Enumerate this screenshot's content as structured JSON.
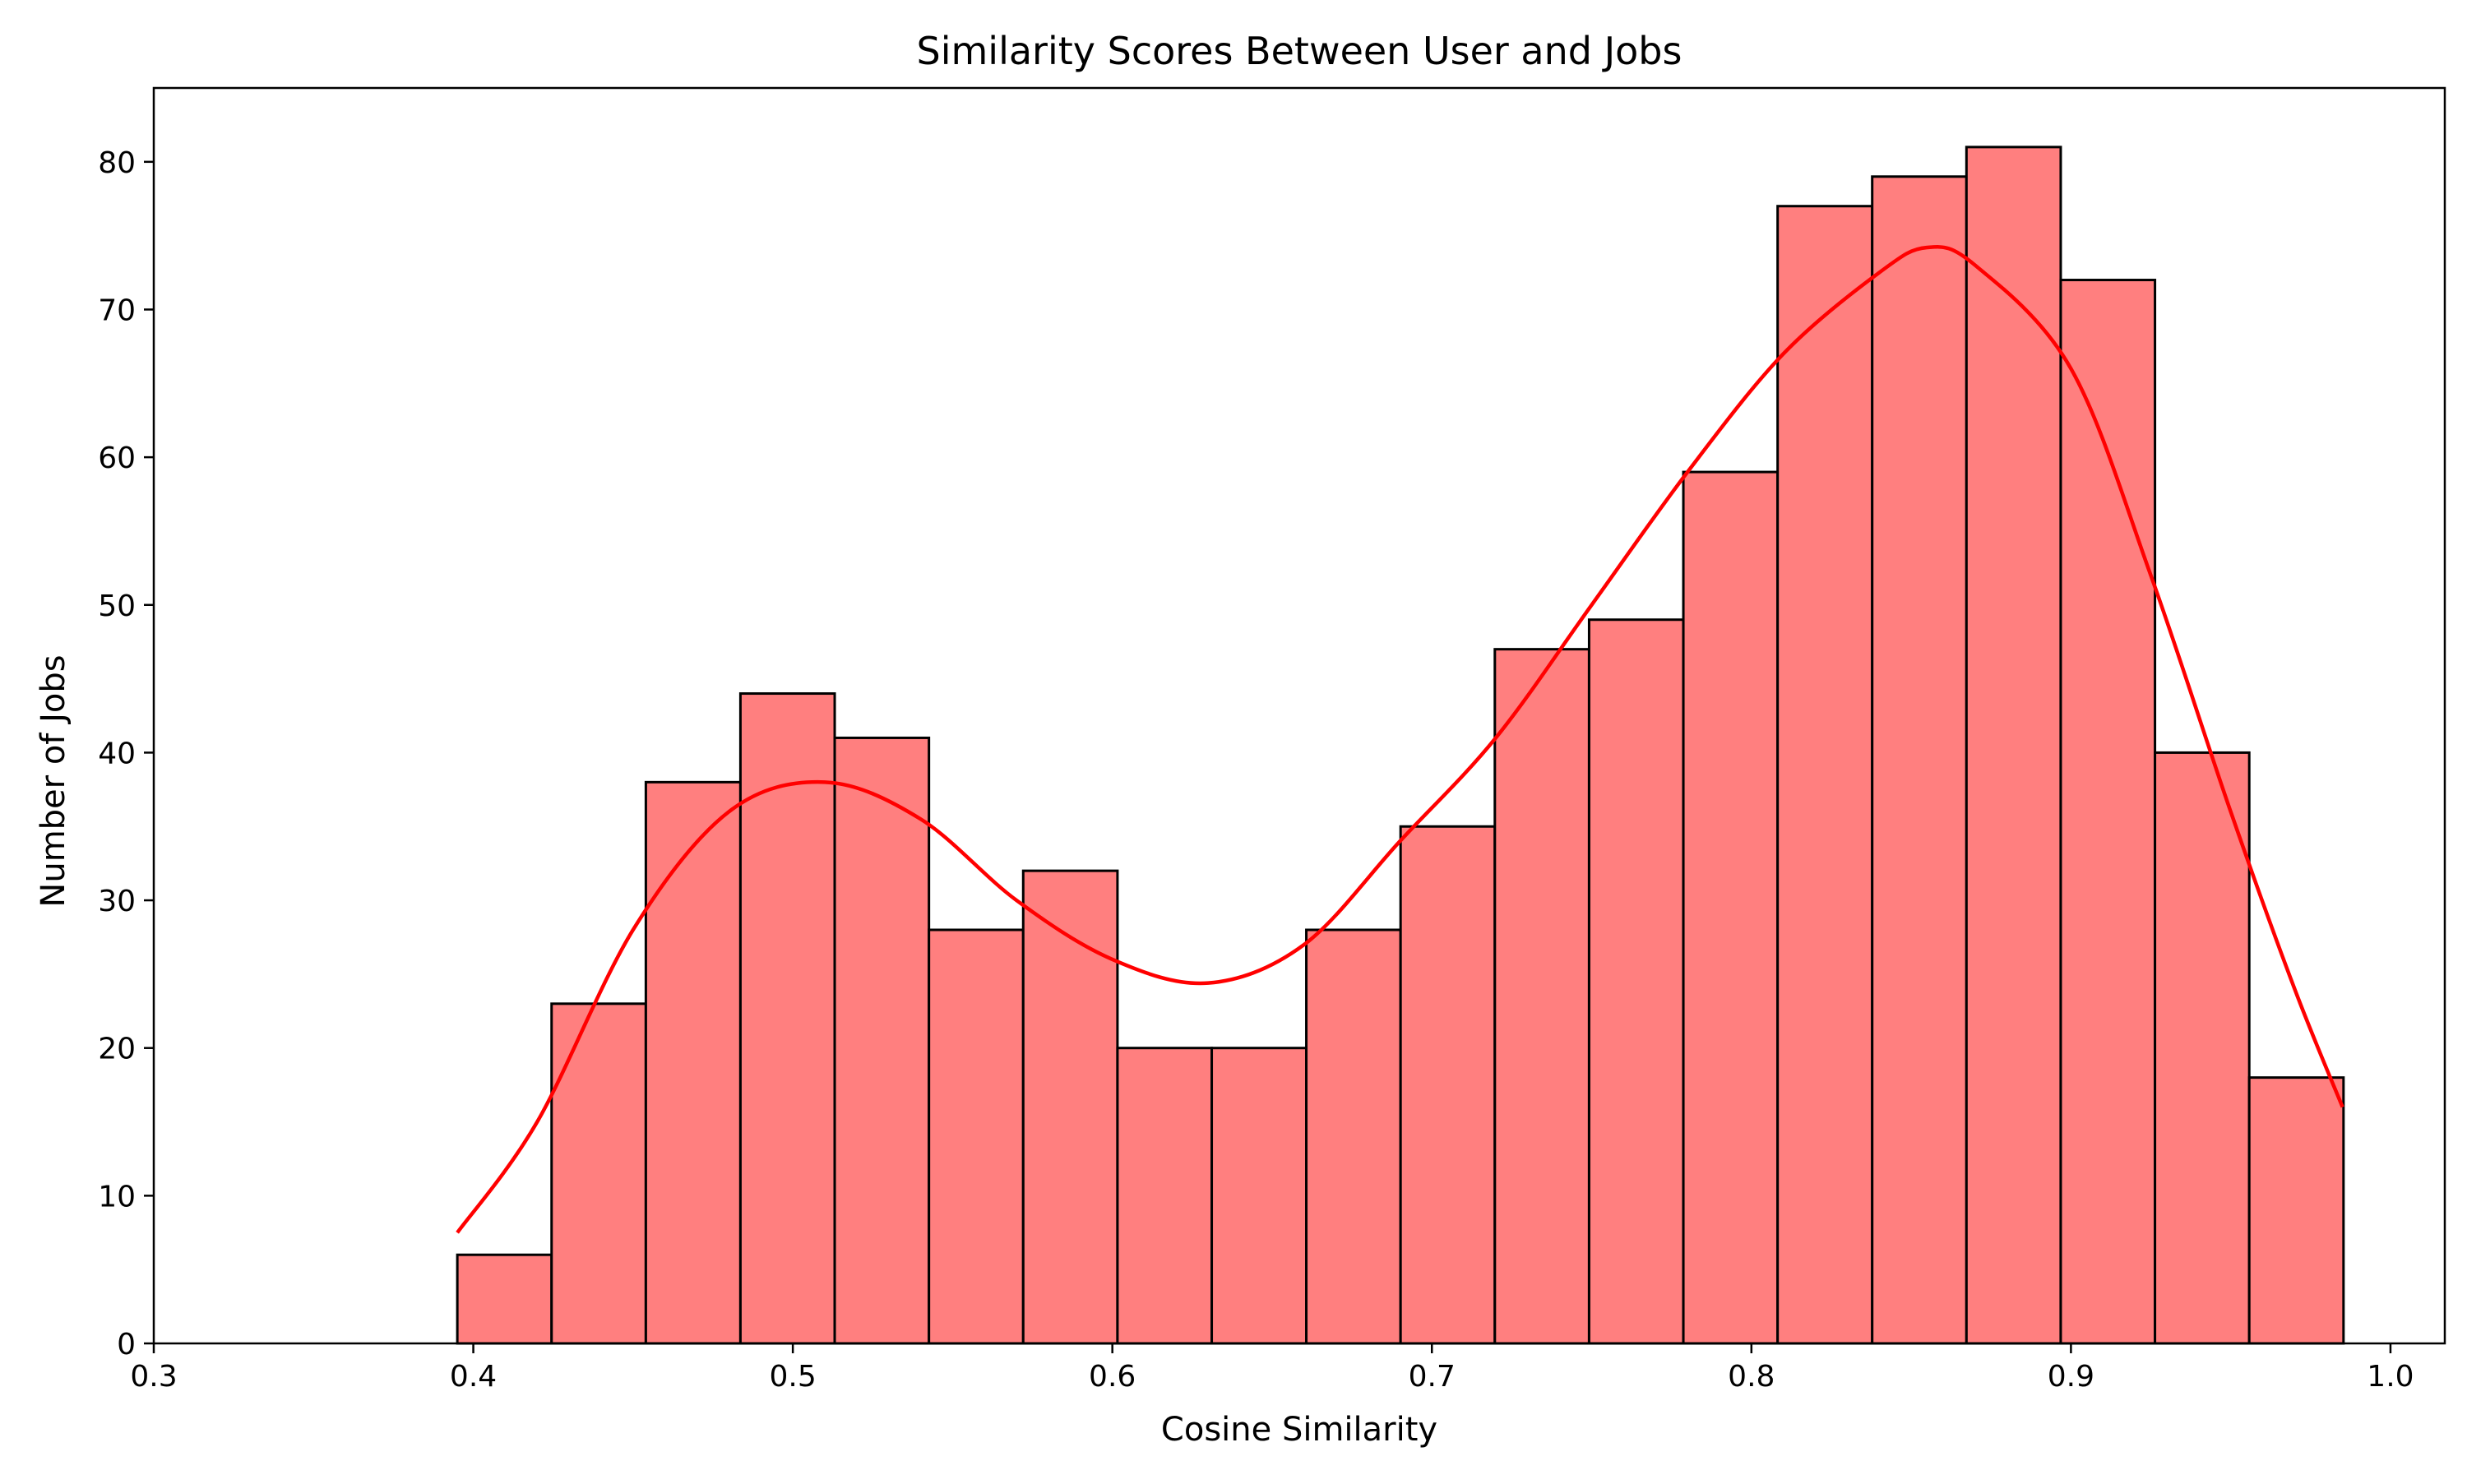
{
  "chart_data": {
    "type": "bar",
    "title": "Similarity Scores Between User and Jobs",
    "xlabel": "Cosine Similarity",
    "ylabel": "Number of Jobs",
    "xlim": [
      0.3,
      1.017
    ],
    "ylim": [
      0,
      85
    ],
    "x_ticks": [
      "0.3",
      "0.4",
      "0.5",
      "0.6",
      "0.7",
      "0.8",
      "0.9",
      "1.0"
    ],
    "y_ticks": [
      "0",
      "10",
      "20",
      "30",
      "40",
      "50",
      "60",
      "70",
      "80"
    ],
    "grid": false,
    "bin_edges": [
      0.395,
      0.4245,
      0.454,
      0.4836,
      0.5131,
      0.5426,
      0.5721,
      0.6016,
      0.6311,
      0.6607,
      0.6902,
      0.7197,
      0.7492,
      0.7787,
      0.8082,
      0.8378,
      0.8673,
      0.8968,
      0.9263,
      0.9558,
      0.9853
    ],
    "values": [
      6,
      23,
      38,
      44,
      41,
      28,
      32,
      20,
      20,
      28,
      35,
      47,
      49,
      59,
      77,
      79,
      81,
      72,
      40,
      18
    ],
    "kde_x": [
      0.395,
      0.42,
      0.45,
      0.48,
      0.51,
      0.54,
      0.57,
      0.6,
      0.63,
      0.66,
      0.69,
      0.72,
      0.75,
      0.78,
      0.81,
      0.84,
      0.855,
      0.87,
      0.9,
      0.925,
      0.95,
      0.97,
      0.985
    ],
    "kde_y": [
      7.5,
      15,
      28,
      36,
      38,
      35.5,
      30,
      26,
      24.4,
      27,
      34,
      41,
      50,
      59,
      67,
      72.5,
      74.2,
      73,
      66,
      52,
      36,
      24,
      16
    ],
    "bar_color": "#ff7f7f",
    "bar_edge_color": "#000000",
    "kde_color": "#ff0000"
  }
}
